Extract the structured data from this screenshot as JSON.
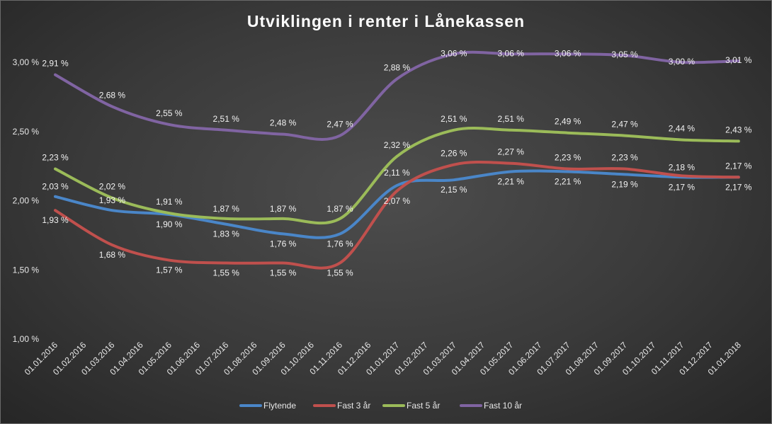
{
  "chart_data": {
    "type": "line",
    "title": "Utviklingen i renter i Lånekassen",
    "categories": [
      "01.01.2016",
      "01.02.2016",
      "01.03.2016",
      "01.04.2016",
      "01.05.2016",
      "01.06.2016",
      "01.07.2016",
      "01.08.2016",
      "01.09.2016",
      "01.10.2016",
      "01.11.2016",
      "01.12.2016",
      "01.01.2017",
      "01.02.2017",
      "01.03.2017",
      "01.04.2017",
      "01.05.2017",
      "01.06.2017",
      "01.07.2017",
      "01.08.2017",
      "01.09.2017",
      "01.10.2017",
      "01.11.2017",
      "01.12.2017",
      "01.01.2018"
    ],
    "ylim": [
      1.0,
      3.0
    ],
    "yticks": [
      {
        "value": 1.0,
        "label": "1,00 %"
      },
      {
        "value": 1.5,
        "label": "1,50 %"
      },
      {
        "value": 2.0,
        "label": "2,00 %"
      },
      {
        "value": 2.5,
        "label": "2,50 %"
      },
      {
        "value": 3.0,
        "label": "3,00 %"
      }
    ],
    "grid": false,
    "legend": "bottom",
    "series": [
      {
        "name": "Flytende",
        "color": "#4a86c8",
        "points": [
          [
            0,
            2.03
          ],
          [
            2,
            1.93
          ],
          [
            4,
            1.9
          ],
          [
            6,
            1.83
          ],
          [
            8,
            1.76
          ],
          [
            10,
            1.76
          ],
          [
            12,
            2.11
          ],
          [
            14,
            2.15
          ],
          [
            16,
            2.21
          ],
          [
            18,
            2.21
          ],
          [
            20,
            2.19
          ],
          [
            22,
            2.17
          ],
          [
            24,
            2.17
          ]
        ]
      },
      {
        "name": "Fast 3 år",
        "color": "#c0504d",
        "points": [
          [
            0,
            1.93
          ],
          [
            2,
            1.68
          ],
          [
            4,
            1.57
          ],
          [
            6,
            1.55
          ],
          [
            8,
            1.55
          ],
          [
            10,
            1.55
          ],
          [
            12,
            2.07
          ],
          [
            14,
            2.26
          ],
          [
            16,
            2.27
          ],
          [
            18,
            2.23
          ],
          [
            20,
            2.23
          ],
          [
            22,
            2.18
          ],
          [
            24,
            2.17
          ]
        ]
      },
      {
        "name": "Fast 5 år",
        "color": "#9bbb59",
        "points": [
          [
            0,
            2.23
          ],
          [
            2,
            2.02
          ],
          [
            4,
            1.91
          ],
          [
            6,
            1.87
          ],
          [
            8,
            1.87
          ],
          [
            10,
            1.87
          ],
          [
            12,
            2.32
          ],
          [
            14,
            2.51
          ],
          [
            16,
            2.51
          ],
          [
            18,
            2.49
          ],
          [
            20,
            2.47
          ],
          [
            22,
            2.44
          ],
          [
            24,
            2.43
          ]
        ]
      },
      {
        "name": "Fast 10 år",
        "color": "#8064a2",
        "points": [
          [
            0,
            2.91
          ],
          [
            2,
            2.68
          ],
          [
            4,
            2.55
          ],
          [
            6,
            2.51
          ],
          [
            8,
            2.48
          ],
          [
            10,
            2.47
          ],
          [
            12,
            2.88
          ],
          [
            14,
            3.06
          ],
          [
            16,
            3.06
          ],
          [
            18,
            3.06
          ],
          [
            20,
            3.05
          ],
          [
            22,
            3.0
          ],
          [
            24,
            3.01
          ]
        ]
      }
    ],
    "data_labels": [
      {
        "series": "Flytende",
        "labels": [
          "2,03 %",
          "1,93 %",
          "1,90 %",
          "1,83 %",
          "1,76 %",
          "1,76 %",
          "2,11 %",
          "2,15 %",
          "2,21 %",
          "2,21 %",
          "2,19 %",
          "2,17 %",
          "2,17 %"
        ]
      },
      {
        "series": "Fast 3 år",
        "labels": [
          "1,93 %",
          "1,68 %",
          "1,57 %",
          "1,55 %",
          "1,55 %",
          "1,55 %",
          "2,07 %",
          "2,26 %",
          "2,27 %",
          "2,23 %",
          "2,23 %",
          "2,18 %",
          "2,17 %"
        ]
      },
      {
        "series": "Fast 5 år",
        "labels": [
          "2,23 %",
          "2,02 %",
          "1,91 %",
          "1,87 %",
          "1,87 %",
          "1,87 %",
          "2,32 %",
          "2,51 %",
          "2,51 %",
          "2,49 %",
          "2,47 %",
          "2,44 %",
          "2,43 %"
        ]
      },
      {
        "series": "Fast 10 år",
        "labels": [
          "2,91 %",
          "2,68 %",
          "2,55 %",
          "2,51 %",
          "2,48 %",
          "2,47 %",
          "2,88 %",
          "3,06 %",
          "3,06 %",
          "3,06 %",
          "3,05 %",
          "3,00 %",
          "3,01 %"
        ]
      }
    ]
  }
}
